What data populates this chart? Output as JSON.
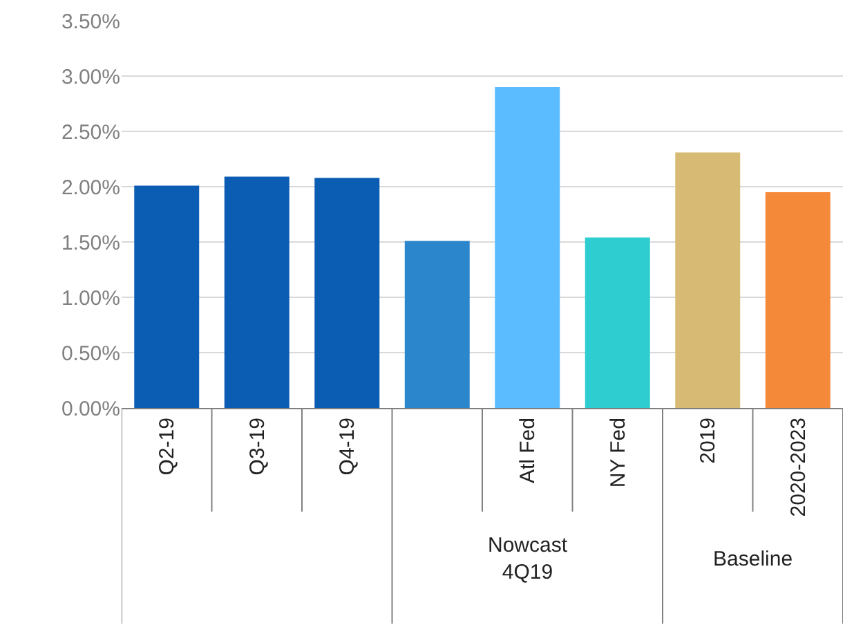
{
  "chart_data": {
    "type": "bar",
    "categories": [
      "Q2-19",
      "Q3-19",
      "Q4-19",
      null,
      "Atl Fed",
      "NY Fed",
      "2019",
      "2020-2023"
    ],
    "values": [
      2.01,
      2.09,
      2.08,
      1.51,
      2.9,
      1.54,
      2.31,
      1.95
    ],
    "colors": [
      "#0b5db3",
      "#0b5db3",
      "#0b5db3",
      "#2b86cc",
      "#5bbdff",
      "#2ecdd0",
      "#d7bb74",
      "#f5893a"
    ],
    "ylim": [
      0,
      3.5
    ],
    "yticks": [
      {
        "value": 0,
        "label": "0.00%"
      },
      {
        "value": 0.5,
        "label": "0.50%"
      },
      {
        "value": 1,
        "label": "1.00%"
      },
      {
        "value": 1.5,
        "label": "1.50%"
      },
      {
        "value": 2,
        "label": "2.00%"
      },
      {
        "value": 2.5,
        "label": "2.50%"
      },
      {
        "value": 3,
        "label": "3.00%"
      },
      {
        "value": 3.5,
        "label": "3.50%"
      }
    ],
    "grid": "y",
    "annotations": [
      "Nowcast\n4Q19",
      "Baseline"
    ]
  }
}
